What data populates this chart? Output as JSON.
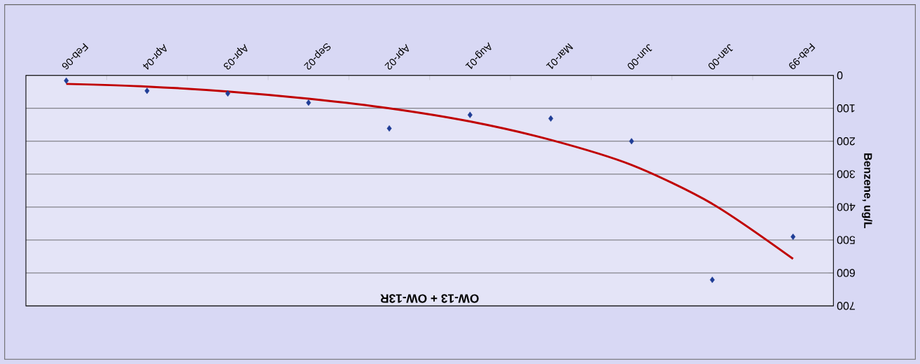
{
  "chart_data": {
    "type": "scatter",
    "title": "OW-13 + OW-13R",
    "ylabel": "Benzene, ug/L",
    "categories": [
      "Feb-06",
      "Apr-04",
      "Apr-03",
      "Sep-02",
      "Apr-02",
      "Aug-01",
      "Mar-01",
      "Jun-00",
      "Jan-00",
      "Feb-99"
    ],
    "series": [
      {
        "marker": "diamond",
        "color": "#1f3d96",
        "values": [
          16,
          47,
          55,
          83,
          161,
          120,
          131,
          200,
          621,
          490
        ]
      },
      {
        "type": "line",
        "marker": "none",
        "color": "#c00000",
        "values": [
          26,
          34,
          49,
          71,
          100,
          140,
          196,
          272,
          390,
          557
        ]
      }
    ],
    "ylim": [
      700,
      0
    ],
    "yticks": [
      700,
      600,
      500,
      400,
      300,
      200,
      100,
      0
    ],
    "grid": "y"
  }
}
